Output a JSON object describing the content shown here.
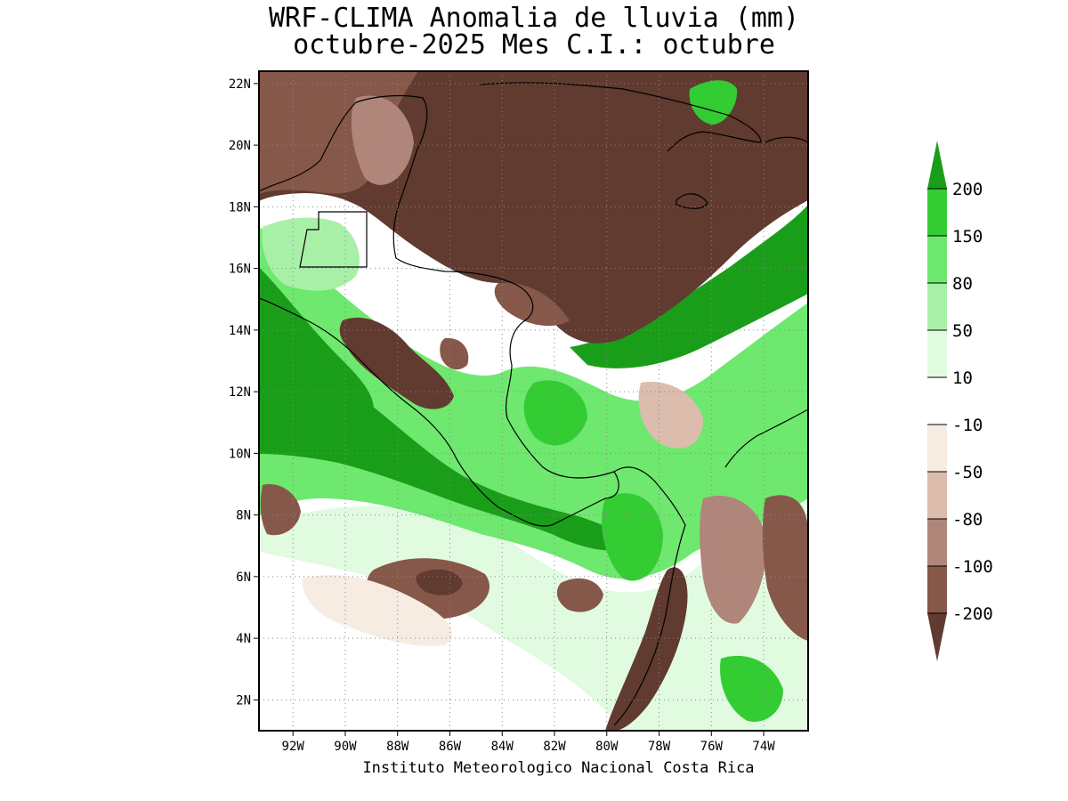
{
  "title": {
    "line1": "WRF-CLIMA Anomalia de lluvia (mm)",
    "line2": "octubre-2025 Mes C.I.: octubre"
  },
  "credit": "Instituto Meteorologico Nacional Costa Rica",
  "axes": {
    "lat_labels": [
      "22N",
      "20N",
      "18N",
      "16N",
      "14N",
      "12N",
      "10N",
      "8N",
      "6N",
      "4N",
      "2N"
    ],
    "lon_labels": [
      "92W",
      "90W",
      "88W",
      "86W",
      "84W",
      "82W",
      "80W",
      "78W",
      "76W",
      "74W"
    ],
    "lat_values": [
      22,
      20,
      18,
      16,
      14,
      12,
      10,
      8,
      6,
      4,
      2
    ],
    "lon_values": [
      -92,
      -90,
      -88,
      -86,
      -84,
      -82,
      -80,
      -78,
      -76,
      -74
    ],
    "lat_range": [
      1,
      22.4
    ],
    "lon_range": [
      -93.3,
      -72.3
    ],
    "grid": "dotted"
  },
  "colorbar": {
    "labels": [
      "200",
      "150",
      "80",
      "50",
      "10",
      "-10",
      "-50",
      "-80",
      "-100",
      "-200"
    ],
    "colors": [
      "#1a9e1a",
      "#33cc33",
      "#6ee86e",
      "#a8f0a8",
      "#e1fbe1",
      "#ffffff",
      "#f6ece2",
      "#dcbcac",
      "#b0857a",
      "#86584a",
      "#613a30"
    ]
  }
}
